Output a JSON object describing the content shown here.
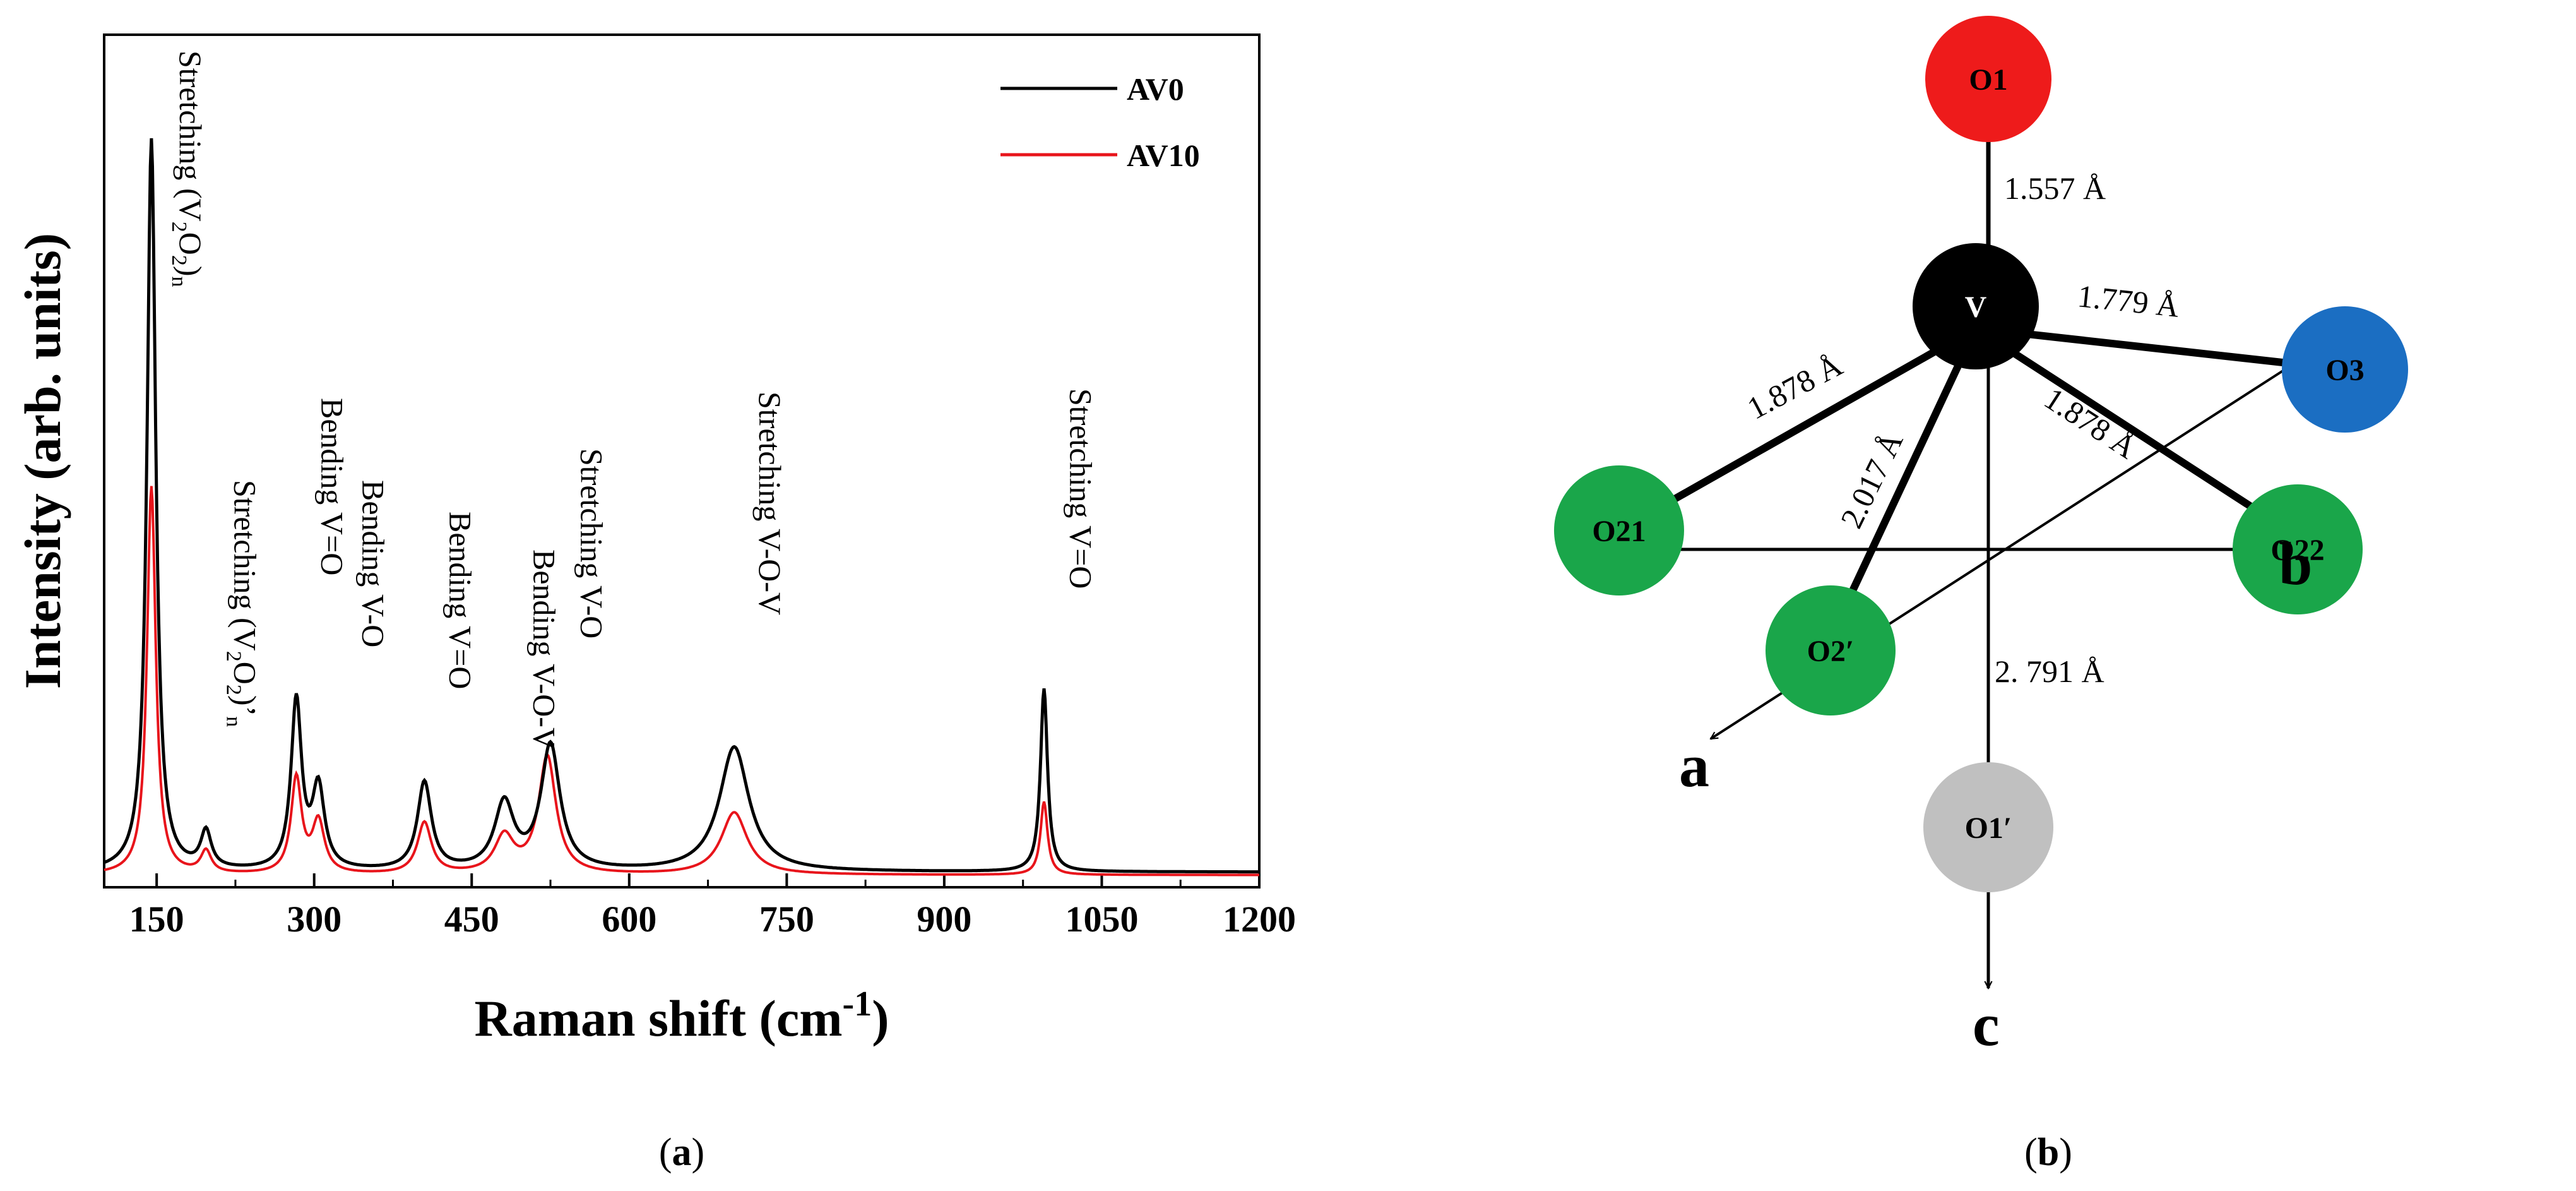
{
  "chart_data": {
    "type": "line",
    "panel_label": "a",
    "xlabel": "Raman shift (cm",
    "xlabel_sup": "-1",
    "xlabel_close": ")",
    "ylabel": "Intensity (arb. units)",
    "xlim": [
      100,
      1200
    ],
    "ylim": [
      0,
      1
    ],
    "xticks": [
      150,
      300,
      450,
      600,
      750,
      900,
      1050,
      1200
    ],
    "legend_placement": "top-right",
    "series": [
      {
        "name": "AV0",
        "color": "#000000",
        "peaks": [
          [
            145,
            1.0,
            5
          ],
          [
            197,
            0.05,
            6
          ],
          [
            283,
            0.23,
            6
          ],
          [
            304,
            0.11,
            7
          ],
          [
            405,
            0.12,
            8
          ],
          [
            481,
            0.09,
            11
          ],
          [
            525,
            0.17,
            11
          ],
          [
            700,
            0.17,
            17
          ],
          [
            995,
            0.25,
            4
          ]
        ],
        "baseline": 0.012
      },
      {
        "name": "AV10",
        "color": "#e8141b",
        "peaks": [
          [
            145,
            0.53,
            5
          ],
          [
            197,
            0.03,
            6
          ],
          [
            283,
            0.13,
            6
          ],
          [
            304,
            0.07,
            7
          ],
          [
            405,
            0.07,
            8
          ],
          [
            481,
            0.05,
            11
          ],
          [
            522,
            0.16,
            10
          ],
          [
            700,
            0.085,
            15
          ],
          [
            995,
            0.1,
            4
          ]
        ],
        "baseline": 0.008
      }
    ],
    "annotations": [
      {
        "x": 148,
        "lines": [
          "Stretching (V",
          "2",
          "O",
          "2",
          ")",
          "n"
        ],
        "kind": "sub"
      },
      {
        "x": 200,
        "lines": [
          "Stretching (V",
          "2",
          "O",
          "2",
          ")’",
          "n"
        ],
        "kind": "sub"
      },
      {
        "x": 283,
        "text": "Bending V=O"
      },
      {
        "x": 322,
        "text": "Bending V-O"
      },
      {
        "x": 405,
        "text": "Bending V=O"
      },
      {
        "x": 485,
        "text": "Bending V-O-V"
      },
      {
        "x": 530,
        "text": "Stretching V-O"
      },
      {
        "x": 700,
        "text": "Stretching V-O-V"
      },
      {
        "x": 996,
        "text": "Stretching V=O"
      }
    ]
  },
  "structure": {
    "panel_label": "b",
    "atoms": [
      {
        "label": "O1",
        "color": "#ee1b1b"
      },
      {
        "label": "V",
        "color": "#000000"
      },
      {
        "label": "O3",
        "color": "#1b6ec2"
      },
      {
        "label": "O21",
        "color": "#1aa64a"
      },
      {
        "label": "O22",
        "color": "#1aa64a"
      },
      {
        "label": "O2′",
        "color": "#1aa64a"
      },
      {
        "label": "O1′",
        "color": "#c0c0c0"
      }
    ],
    "bonds": [
      "1.557 Å",
      "1.779 Å",
      "1.878 Å",
      "2.017 Å",
      "1.878 Å",
      "2. 791 Å"
    ],
    "axes": [
      "a",
      "b",
      "c"
    ]
  }
}
